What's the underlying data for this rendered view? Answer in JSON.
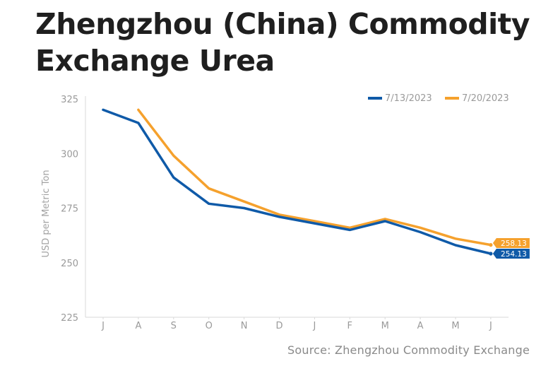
{
  "title_lines": [
    "Zhengzhou (China) Commodity",
    "Exchange Urea"
  ],
  "source": "Source: Zhengzhou Commodity Exchange",
  "chart_data": {
    "type": "line",
    "ylabel": "USD per Metric Ton",
    "xlabel": "",
    "ylim": [
      225,
      325
    ],
    "yticks": [
      325,
      300,
      275,
      250,
      225
    ],
    "categories": [
      "J",
      "A",
      "S",
      "O",
      "N",
      "D",
      "J",
      "F",
      "M",
      "A",
      "M",
      "J"
    ],
    "grid": false,
    "legend": "top-right",
    "series": [
      {
        "name": "7/13/2023",
        "color": "#0f5aa8",
        "values": [
          320,
          314,
          289,
          277,
          275,
          271,
          268,
          265,
          269,
          264,
          258,
          254.13
        ],
        "end_label": "254.13"
      },
      {
        "name": "7/20/2023",
        "color": "#f5a12d",
        "values": [
          null,
          320,
          299,
          284,
          278,
          272,
          269,
          266,
          270,
          266,
          261,
          258.13
        ],
        "end_label": "258.13"
      }
    ]
  }
}
